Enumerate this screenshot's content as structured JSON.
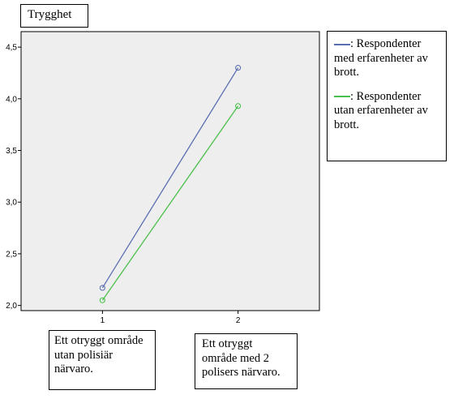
{
  "title": "Trygghet",
  "colors": {
    "plot_bg": "#eeeeee",
    "series_blue": "#5a6fb2",
    "series_green": "#4cc04c",
    "axis": "#000000"
  },
  "legend": {
    "items": [
      {
        "text": ": Respondenter med erfarenheter av brott."
      },
      {
        "text": ": Respondenter utan erfarenheter av brott."
      }
    ]
  },
  "category_notes": [
    "Ett otryggt område utan polisiär närvaro.",
    "Ett otryggt område med 2 polisers närvaro."
  ],
  "chart_data": {
    "type": "line",
    "x": [
      1,
      2
    ],
    "x_tick_labels": [
      "1",
      "2"
    ],
    "ylim": [
      1.95,
      4.65
    ],
    "y_ticks": [
      2.0,
      2.5,
      3.0,
      3.5,
      4.0,
      4.5
    ],
    "y_tick_labels": [
      "2,0",
      "2,5",
      "3,0",
      "3,5",
      "4,0",
      "4,5"
    ],
    "grid": false,
    "legend_position": "right",
    "series": [
      {
        "values": [
          2.17,
          4.3
        ],
        "color": "#5a6fb2"
      },
      {
        "values": [
          2.05,
          3.93
        ],
        "color": "#4cc04c"
      }
    ]
  }
}
